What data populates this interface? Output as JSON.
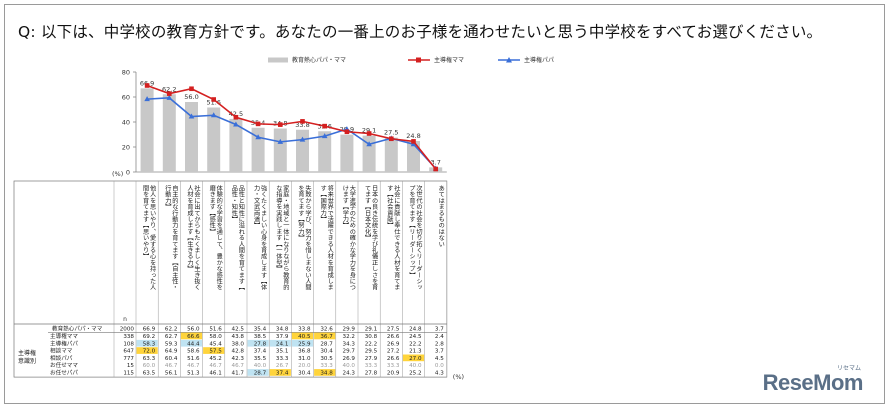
{
  "question": "Q: 以下は、中学校の教育方針です。あなたの一番上のお子様を通わせたいと思う中学校をすべてお選びください。",
  "logo": "ReseMom",
  "logo_kana": "リセマム",
  "pct_label": "(%)",
  "n_label": "n",
  "row_group_label": "主導権\n意識別",
  "colors": {
    "bar": "#c8c8c8",
    "mama": "#d42020",
    "papa": "#3a6fd8",
    "highlight_high": "#ffd43b",
    "highlight_low": "#bfe3f2"
  },
  "chart_data": {
    "type": "bar",
    "ylim": [
      0,
      80
    ],
    "yticks": [
      0,
      20,
      40,
      60,
      80
    ],
    "ylabel": "(%)",
    "legend_position": "top-center",
    "categories": [
      "他人を思いやり、愛する心を持った人間を育てます【思いやり】",
      "自主的な行動力を育てます【自主性・行動力】",
      "社会に出てからもたくましく生き抜く人材を育成します【生きる力】",
      "体験的な学習を通して、豊かな感性を磨きます【感性】",
      "品性と知性に溢れる人間を育てます【品性・知性】",
      "強くたくましい心身を育成します【体力・文武両道】",
      "家庭・地域と一体になりながら教育的な指導を実践します【一体型】",
      "失敗から学び、努力を惜しまない人間を育てます【努力】",
      "将来世界で活躍できる人材を育成します【国際力】",
      "大学進学のための確かな学力を身につけます【学力】",
      "日本の良き伝統を学び礼儀正しさを育てます【日本文化】",
      "社会に貢献し奉仕できる人材を育てます【社会貢献】",
      "次世代の社会を切り拓くリーダーシップを育てます【リーダーシップ】",
      "あてはまるものはない"
    ],
    "series": [
      {
        "name": "教育熱心パパ・ママ",
        "type": "bar",
        "values": [
          66.9,
          62.2,
          56.0,
          51.6,
          42.5,
          35.4,
          34.8,
          33.8,
          32.6,
          29.9,
          29.1,
          27.5,
          24.8,
          3.7
        ]
      },
      {
        "name": "主導権ママ",
        "type": "line",
        "values": [
          69.2,
          62.7,
          66.6,
          58.0,
          43.8,
          38.5,
          37.9,
          40.5,
          36.7,
          32.2,
          30.8,
          26.6,
          24.5,
          2.4
        ]
      },
      {
        "name": "主導権パパ",
        "type": "line",
        "values": [
          58.3,
          59.3,
          44.4,
          45.4,
          38.0,
          27.8,
          24.1,
          25.9,
          28.7,
          34.3,
          22.2,
          26.9,
          22.2,
          2.8
        ]
      }
    ]
  },
  "table": {
    "rows": [
      {
        "label": "教育熱心パパ・ママ",
        "n": "2000",
        "values": [
          "66.9",
          "62.2",
          "56.0",
          "51.6",
          "42.5",
          "35.4",
          "34.8",
          "33.8",
          "32.6",
          "29.9",
          "29.1",
          "27.5",
          "24.8",
          "3.7"
        ]
      },
      {
        "label": "主導権ママ",
        "n": "338",
        "values": [
          "69.2",
          "62.7",
          "66.6",
          "58.0",
          "43.8",
          "38.5",
          "37.9",
          "40.5",
          "36.7",
          "32.2",
          "30.8",
          "26.6",
          "24.5",
          "2.4"
        ]
      },
      {
        "label": "主導権パパ",
        "n": "108",
        "values": [
          "58.3",
          "59.3",
          "44.4",
          "45.4",
          "38.0",
          "27.8",
          "24.1",
          "25.9",
          "28.7",
          "34.3",
          "22.2",
          "26.9",
          "22.2",
          "2.8"
        ]
      },
      {
        "label": "相談ママ",
        "n": "647",
        "values": [
          "72.0",
          "64.9",
          "58.6",
          "57.5",
          "42.8",
          "37.4",
          "35.1",
          "36.8",
          "30.4",
          "29.7",
          "29.5",
          "27.2",
          "21.3",
          "3.7"
        ]
      },
      {
        "label": "相談パパ",
        "n": "777",
        "values": [
          "63.3",
          "60.4",
          "51.6",
          "45.2",
          "42.3",
          "35.5",
          "33.3",
          "31.0",
          "30.5",
          "26.9",
          "27.9",
          "26.6",
          "27.0",
          "4.5"
        ]
      },
      {
        "label": "お任せママ",
        "n": "15",
        "values": [
          "60.0",
          "46.7",
          "46.7",
          "46.7",
          "46.7",
          "40.0",
          "26.7",
          "20.0",
          "33.3",
          "40.0",
          "33.3",
          "33.3",
          "40.0",
          "0.0"
        ]
      },
      {
        "label": "お任せパパ",
        "n": "115",
        "values": [
          "63.5",
          "56.1",
          "51.3",
          "46.1",
          "41.7",
          "28.7",
          "37.4",
          "30.4",
          "34.8",
          "24.3",
          "27.8",
          "20.9",
          "25.2",
          "4.3"
        ]
      }
    ],
    "highlights_high": [
      [
        1,
        2
      ],
      [
        1,
        7
      ],
      [
        1,
        8
      ],
      [
        3,
        0
      ],
      [
        3,
        3
      ],
      [
        6,
        6
      ],
      [
        6,
        8
      ],
      [
        4,
        12
      ]
    ],
    "highlights_low": [
      [
        2,
        0
      ],
      [
        2,
        2
      ],
      [
        2,
        5
      ],
      [
        2,
        6
      ],
      [
        2,
        7
      ],
      [
        6,
        5
      ]
    ]
  }
}
